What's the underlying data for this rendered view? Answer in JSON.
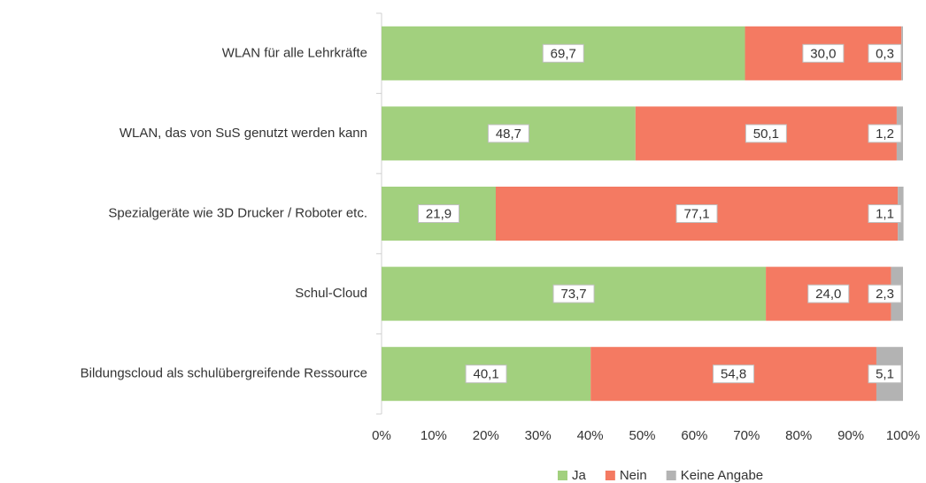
{
  "chart_data": {
    "type": "stacked-barh",
    "categories": [
      "WLAN für alle Lehrkräfte",
      "WLAN, das von SuS genutzt werden kann",
      "Spezialgeräte wie 3D Drucker / Roboter etc.",
      "Schul-Cloud",
      "Bildungscloud als schulübergreifende Ressource"
    ],
    "series": [
      {
        "name": "Ja",
        "color": "#a2d07e",
        "values": [
          69.7,
          48.7,
          21.9,
          73.7,
          40.1
        ],
        "value_labels": [
          "69,7",
          "48,7",
          "21,9",
          "73,7",
          "40,1"
        ]
      },
      {
        "name": "Nein",
        "color": "#f47a62",
        "values": [
          30.0,
          50.1,
          77.1,
          24.0,
          54.8
        ],
        "value_labels": [
          "30,0",
          "50,1",
          "77,1",
          "24,0",
          "54,8"
        ]
      },
      {
        "name": "Keine Angabe",
        "color": "#b3b3b3",
        "values": [
          0.3,
          1.2,
          1.1,
          2.3,
          5.1
        ],
        "value_labels": [
          "0,3",
          "1,2",
          "1,1",
          "2,3",
          "5,1"
        ]
      }
    ],
    "xlim": [
      0,
      100
    ],
    "xticks": [
      {
        "value": 0,
        "label": "0%"
      },
      {
        "value": 10,
        "label": "10%"
      },
      {
        "value": 20,
        "label": "20%"
      },
      {
        "value": 30,
        "label": "30%"
      },
      {
        "value": 40,
        "label": "40%"
      },
      {
        "value": 50,
        "label": "50%"
      },
      {
        "value": 60,
        "label": "60%"
      },
      {
        "value": 70,
        "label": "70%"
      },
      {
        "value": 80,
        "label": "80%"
      },
      {
        "value": 90,
        "label": "90%"
      },
      {
        "value": 100,
        "label": "100%"
      }
    ],
    "legend": "bottom"
  }
}
